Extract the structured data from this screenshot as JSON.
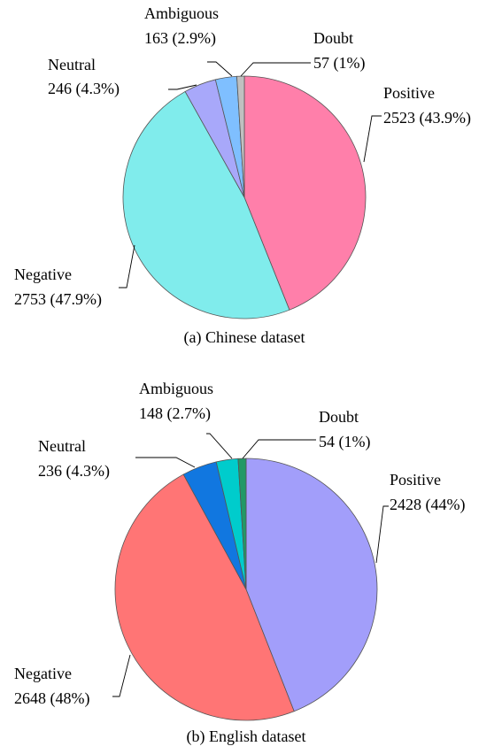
{
  "chart_data": [
    {
      "type": "pie",
      "caption": "(a) Chinese dataset",
      "slices": [
        {
          "label": "Positive",
          "value": 2523,
          "percent": "43.9%",
          "color": "#FF7FAA"
        },
        {
          "label": "Negative",
          "value": 2753,
          "percent": "47.9%",
          "color": "#80ECEC"
        },
        {
          "label": "Neutral",
          "value": 246,
          "percent": "4.3%",
          "color": "#A8A8FA"
        },
        {
          "label": "Ambiguous",
          "value": 163,
          "percent": "2.9%",
          "color": "#7FBFFF"
        },
        {
          "label": "Doubt",
          "value": 57,
          "percent": "1%",
          "color": "#C0C0C0"
        }
      ]
    },
    {
      "type": "pie",
      "caption": "(b) English dataset",
      "slices": [
        {
          "label": "Positive",
          "value": 2428,
          "percent": "44%",
          "color": "#A29EFA"
        },
        {
          "label": "Negative",
          "value": 2648,
          "percent": "48%",
          "color": "#FF7575"
        },
        {
          "label": "Neutral",
          "value": 236,
          "percent": "4.3%",
          "color": "#1177E0"
        },
        {
          "label": "Ambiguous",
          "value": 148,
          "percent": "2.7%",
          "color": "#00CCCC"
        },
        {
          "label": "Doubt",
          "value": 54,
          "percent": "1%",
          "color": "#229966"
        }
      ]
    }
  ]
}
